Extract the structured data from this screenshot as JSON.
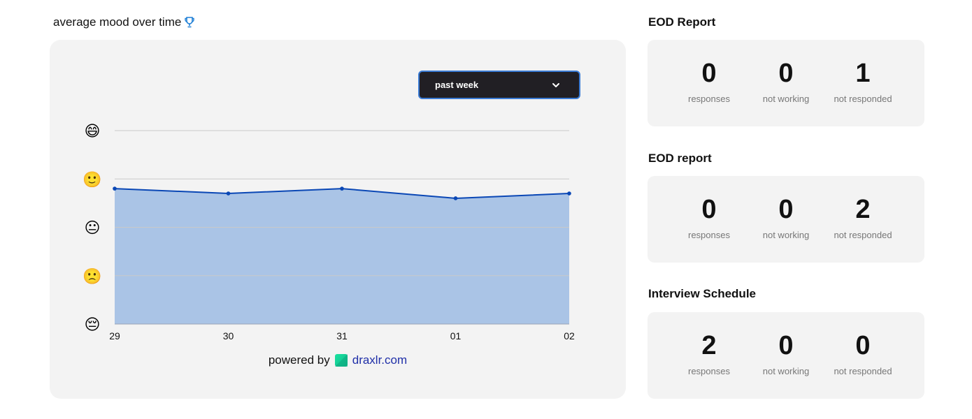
{
  "mood": {
    "title": "average mood over time",
    "trophy_icon": "trophy-icon",
    "period_select": {
      "value": "past week"
    },
    "powered_by": {
      "text": "powered by",
      "link": "draxlr.com"
    }
  },
  "chart_data": {
    "type": "area",
    "categories": [
      "29",
      "30",
      "31",
      "01",
      "02"
    ],
    "series": [
      {
        "values": [
          3.8,
          3.7,
          3.8,
          3.6,
          3.7
        ]
      }
    ],
    "y_axis_icons": [
      "😄",
      "🙂",
      "😐",
      "🙁",
      "😔"
    ],
    "ylim": [
      1,
      5
    ],
    "grid": true,
    "line_color": "#0a47b5",
    "fill_color": "#aac4e6"
  },
  "reports": [
    {
      "title": "EOD Report",
      "stats": [
        {
          "value": "0",
          "label": "responses"
        },
        {
          "value": "0",
          "label": "not working"
        },
        {
          "value": "1",
          "label": "not responded"
        }
      ]
    },
    {
      "title": "EOD report",
      "stats": [
        {
          "value": "0",
          "label": "responses"
        },
        {
          "value": "0",
          "label": "not working"
        },
        {
          "value": "2",
          "label": "not responded"
        }
      ]
    },
    {
      "title": "Interview Schedule",
      "stats": [
        {
          "value": "2",
          "label": "responses"
        },
        {
          "value": "0",
          "label": "not working"
        },
        {
          "value": "0",
          "label": "not responded"
        }
      ]
    }
  ]
}
